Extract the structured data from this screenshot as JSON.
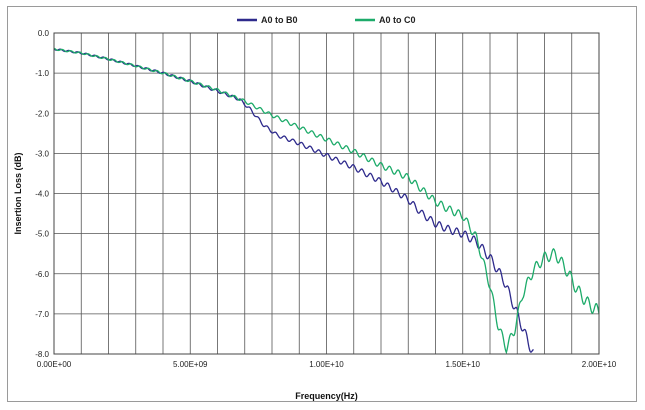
{
  "chart_data": {
    "type": "line",
    "title": "",
    "xlabel": "Frequency(Hz)",
    "ylabel": "Insertion Loss (dB)",
    "xlim": [
      0,
      20000000000
    ],
    "ylim": [
      -8,
      0
    ],
    "x_ticks": [
      0,
      5000000000,
      10000000000,
      15000000000,
      20000000000
    ],
    "x_tick_labels": [
      "0.00E+00",
      "5.00E+09",
      "1.00E+10",
      "1.50E+10",
      "2.00E+10"
    ],
    "y_ticks": [
      0,
      -1,
      -2,
      -3,
      -4,
      -5,
      -6,
      -7,
      -8
    ],
    "y_tick_labels": [
      "0.0",
      "-1.0",
      "-2.0",
      "-3.0",
      "-4.0",
      "-5.0",
      "-6.0",
      "-7.0",
      "-8.0"
    ],
    "grid": true,
    "legend_position": "top-center",
    "series": [
      {
        "name": "A0 to B0",
        "color": "#2e2a8c",
        "points": [
          [
            0,
            -0.4
          ],
          [
            1000000000,
            -0.5
          ],
          [
            2000000000,
            -0.65
          ],
          [
            3000000000,
            -0.82
          ],
          [
            4000000000,
            -1.0
          ],
          [
            5000000000,
            -1.2
          ],
          [
            6000000000,
            -1.45
          ],
          [
            6800000000,
            -1.65
          ],
          [
            7200000000,
            -1.9
          ],
          [
            7700000000,
            -2.3
          ],
          [
            8200000000,
            -2.55
          ],
          [
            9000000000,
            -2.75
          ],
          [
            10000000000,
            -3.05
          ],
          [
            11000000000,
            -3.35
          ],
          [
            12000000000,
            -3.7
          ],
          [
            13000000000,
            -4.15
          ],
          [
            13500000000,
            -4.5
          ],
          [
            14000000000,
            -4.75
          ],
          [
            14500000000,
            -4.9
          ],
          [
            15000000000,
            -5.0
          ],
          [
            15500000000,
            -5.2
          ],
          [
            16000000000,
            -5.6
          ],
          [
            16500000000,
            -6.15
          ],
          [
            17000000000,
            -7.0
          ],
          [
            17400000000,
            -7.7
          ],
          [
            17600000000,
            -8.0
          ]
        ]
      },
      {
        "name": "A0 to C0",
        "color": "#1dab6a",
        "points": [
          [
            0,
            -0.4
          ],
          [
            1000000000,
            -0.5
          ],
          [
            2000000000,
            -0.65
          ],
          [
            3000000000,
            -0.82
          ],
          [
            4000000000,
            -1.0
          ],
          [
            5000000000,
            -1.2
          ],
          [
            6000000000,
            -1.42
          ],
          [
            7000000000,
            -1.7
          ],
          [
            8000000000,
            -2.05
          ],
          [
            9000000000,
            -2.35
          ],
          [
            10000000000,
            -2.65
          ],
          [
            11000000000,
            -2.95
          ],
          [
            12000000000,
            -3.3
          ],
          [
            13000000000,
            -3.6
          ],
          [
            13500000000,
            -3.9
          ],
          [
            14000000000,
            -4.2
          ],
          [
            14500000000,
            -4.4
          ],
          [
            15000000000,
            -4.55
          ],
          [
            15500000000,
            -5.1
          ],
          [
            16000000000,
            -6.3
          ],
          [
            16300000000,
            -7.3
          ],
          [
            16600000000,
            -7.85
          ],
          [
            16900000000,
            -7.4
          ],
          [
            17200000000,
            -6.5
          ],
          [
            17600000000,
            -5.9
          ],
          [
            18000000000,
            -5.6
          ],
          [
            18400000000,
            -5.5
          ],
          [
            18800000000,
            -5.9
          ],
          [
            19200000000,
            -6.4
          ],
          [
            19600000000,
            -6.75
          ],
          [
            20000000000,
            -6.95
          ]
        ]
      }
    ]
  }
}
